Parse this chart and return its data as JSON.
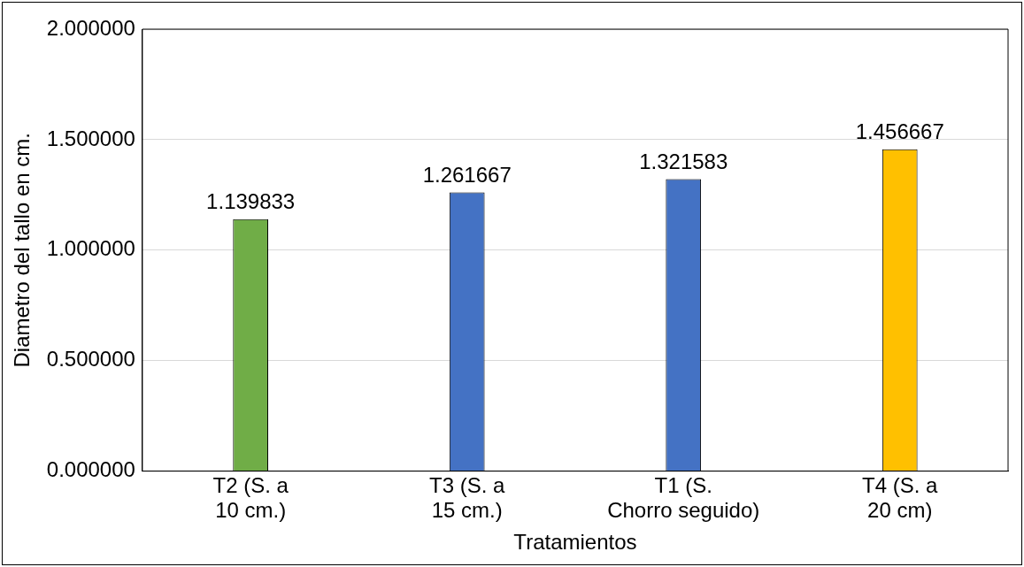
{
  "chart_data": {
    "type": "bar",
    "xlabel": "Tratamientos",
    "ylabel": "Diametro del tallo en cm.",
    "categories": [
      "T2 (S. a 10 cm.)",
      "T3 (S. a 15 cm.)",
      "T1 (S. Chorro seguido)",
      "T4 (S. a 20 cm)"
    ],
    "values": [
      1.139833,
      1.261667,
      1.321583,
      1.456667
    ],
    "colors": [
      "#70ad47",
      "#4472c4",
      "#4472c4",
      "#ffc000"
    ],
    "ylim": [
      0,
      2
    ],
    "yticks": [
      {
        "value": 0,
        "label": "0.000000"
      },
      {
        "value": 0.5,
        "label": "0.500000"
      },
      {
        "value": 1,
        "label": "1.000000"
      },
      {
        "value": 1.5,
        "label": "1.500000"
      },
      {
        "value": 2,
        "label": "2.000000"
      }
    ],
    "grid": "y",
    "data_labels": true
  }
}
